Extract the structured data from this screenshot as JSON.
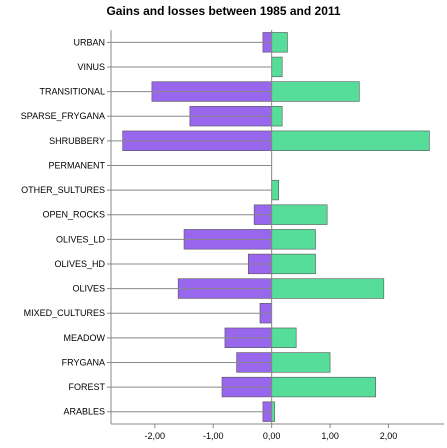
{
  "chart_data": {
    "type": "bar",
    "orientation": "horizontal",
    "title": "Gains and losses between 1985 and 2011",
    "xlabel": "",
    "ylabel": "",
    "xlim": [
      -2.75,
      2.95
    ],
    "x_ticks": [
      -2,
      -1,
      0,
      1,
      2
    ],
    "x_tick_labels": [
      "-2,00",
      "-1,00",
      "0,00",
      "1,00",
      "2,00"
    ],
    "gridlines": "none",
    "legend": "none",
    "categories": [
      "URBAN",
      "VINUS",
      "TRANSITIONAL",
      "SPARSE_FRYGANA",
      "SHRUBBERY",
      "PERMANENT",
      "OTHER_SULTURES",
      "OPEN_ROCKS",
      "OLIVES_LD",
      "OLIVES_HD",
      "OLIVES",
      "MIXED_CULTURES",
      "MEADOW",
      "FRYGANA",
      "FOREST",
      "ARABLES"
    ],
    "series": [
      {
        "color": "#9966ee",
        "values": [
          -0.15,
          0.0,
          -2.05,
          -1.4,
          -2.55,
          0.0,
          0.0,
          -0.3,
          -1.5,
          -0.4,
          -1.6,
          -0.2,
          -0.8,
          -0.6,
          -0.85,
          -0.15
        ]
      },
      {
        "color": "#55dd99",
        "values": [
          0.27,
          0.18,
          1.5,
          0.18,
          2.7,
          0.0,
          0.12,
          0.95,
          0.75,
          0.75,
          1.92,
          0.0,
          0.42,
          1.0,
          1.78,
          0.05
        ]
      }
    ],
    "colors": {
      "negative": "#9966ee",
      "positive": "#55dd99",
      "axis": "#888888"
    }
  }
}
